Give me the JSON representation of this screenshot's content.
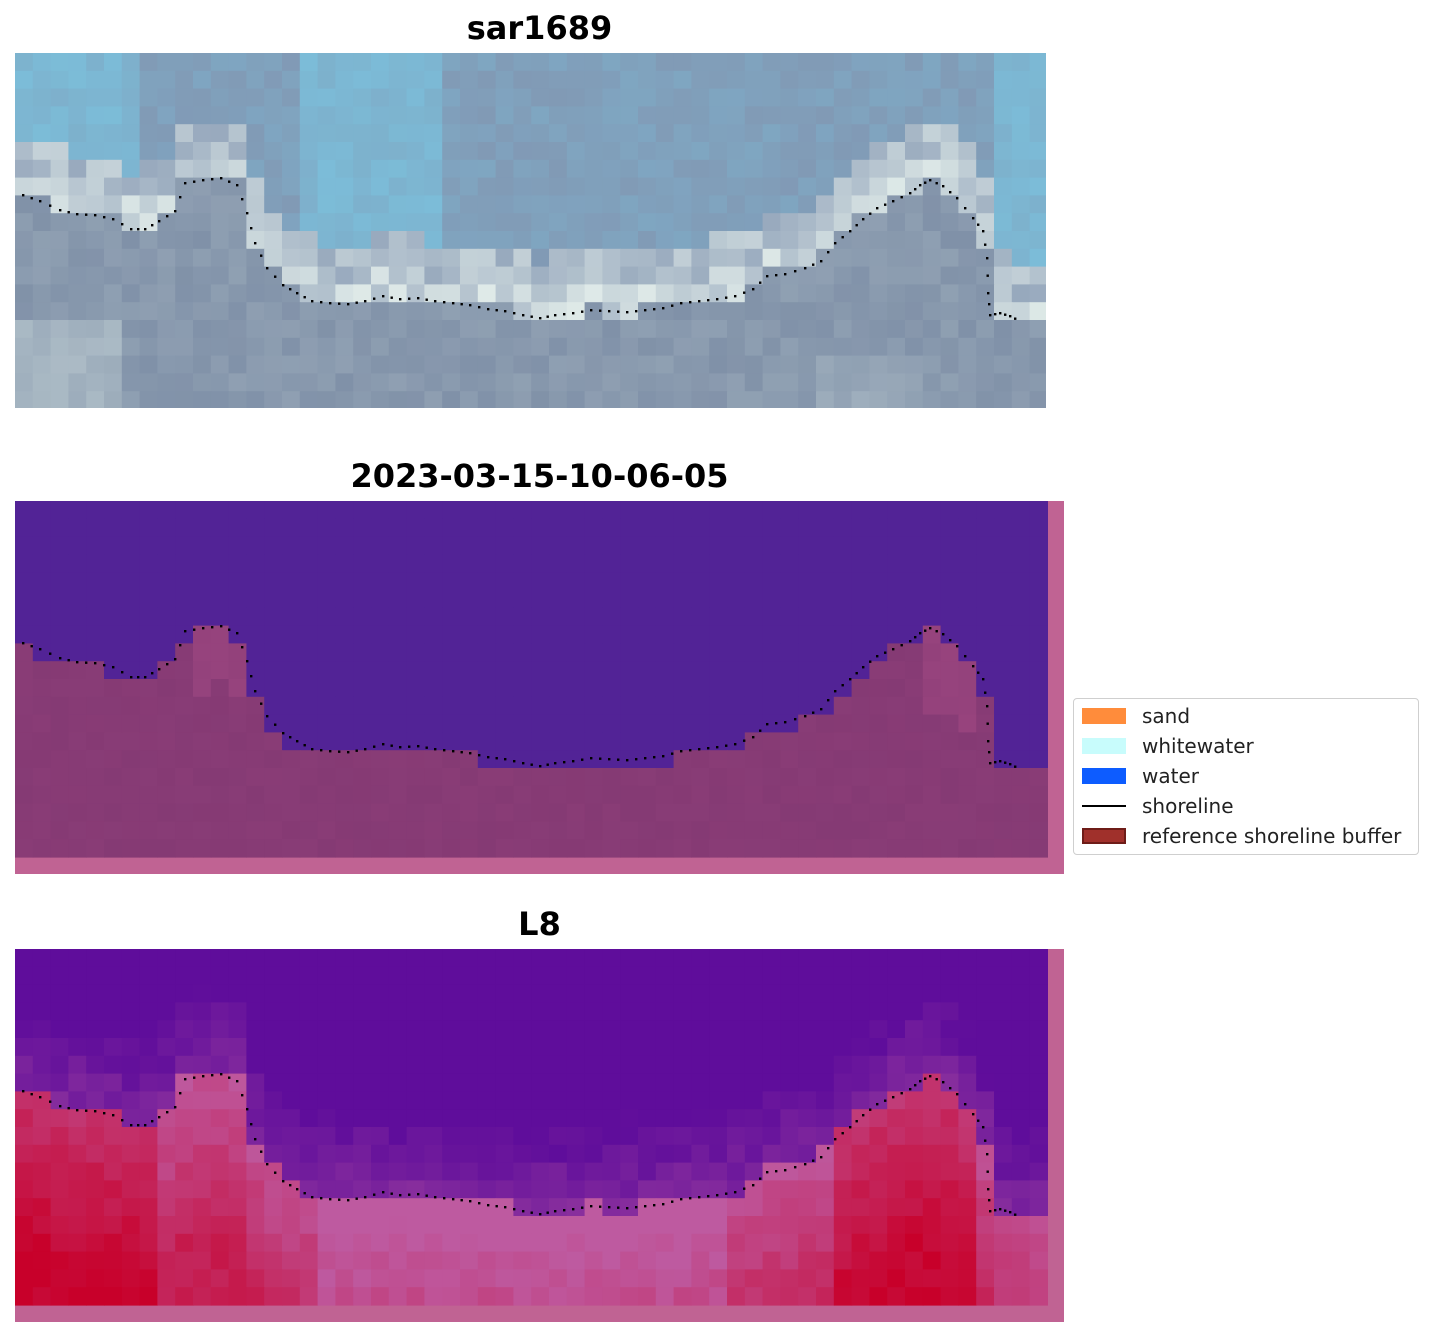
{
  "panels": {
    "rgb": {
      "title": "sar1689"
    },
    "classification": {
      "title": "2023-03-15-10-06-05"
    },
    "index": {
      "title": "L8"
    }
  },
  "legend": {
    "items": [
      {
        "label": "sand",
        "color": "#ff8c3b",
        "kind": "patch"
      },
      {
        "label": "whitewater",
        "color": "#c8fcfc",
        "kind": "patch"
      },
      {
        "label": "water",
        "color": "#0d5cff",
        "kind": "patch"
      },
      {
        "label": "shoreline",
        "color": "#000000",
        "kind": "line"
      },
      {
        "label": "reference shoreline buffer",
        "color": "#a0302b",
        "kind": "patch-edge"
      }
    ]
  },
  "colors": {
    "water_class": "#522396",
    "land_class": "#853a74",
    "buffer_border": "#c06393",
    "sky_blue": "#7ac6e2",
    "grey_blue": "#8295b0",
    "index_low": "#5f0d9b",
    "index_high": "#c8002a"
  }
}
